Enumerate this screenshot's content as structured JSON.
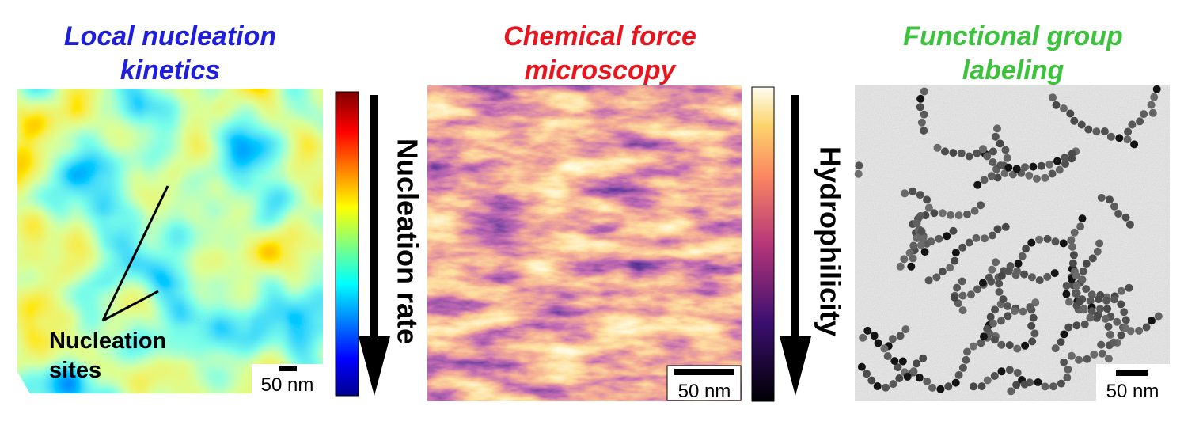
{
  "panels": [
    {
      "title": [
        "Local nucleation",
        "kinetics"
      ],
      "color": "#1e1edc",
      "scale_bar": "50 nm"
    },
    {
      "title": [
        "Chemical force",
        "microscopy"
      ],
      "color": "#e8141e",
      "scale_bar": "50 nm"
    },
    {
      "title": [
        "Functional group",
        "labeling"
      ],
      "color": "#3cc23c",
      "scale_bar": "50 nm"
    }
  ],
  "colorbars": [
    {
      "label": "Nucleation rate"
    },
    {
      "label": "Hydrophilicity"
    }
  ],
  "annotation": [
    "Nucleation",
    "sites"
  ]
}
